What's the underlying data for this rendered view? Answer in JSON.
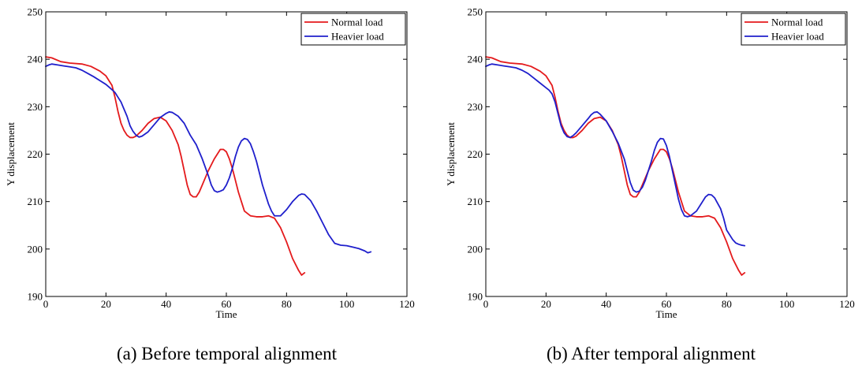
{
  "captions": [
    "(a) Before temporal alignment",
    "(b) After temporal alignment"
  ],
  "chart_data": [
    {
      "type": "line",
      "xlabel": "Time",
      "ylabel": "Y displacement",
      "xlim": [
        0,
        120
      ],
      "ylim": [
        190,
        250
      ],
      "xticks": [
        0,
        20,
        40,
        60,
        80,
        100,
        120
      ],
      "yticks": [
        190,
        200,
        210,
        220,
        230,
        240,
        250
      ],
      "grid": false,
      "legend_position": "top-right",
      "series": [
        {
          "name": "Normal load",
          "color": "#e41a1c",
          "x": [
            0,
            2,
            5,
            8,
            12,
            15,
            18,
            20,
            21,
            22,
            23,
            24,
            25,
            26,
            27,
            28,
            29,
            30,
            32,
            34,
            36,
            38,
            40,
            42,
            44,
            45,
            46,
            47,
            48,
            49,
            50,
            51,
            52,
            53,
            54,
            56,
            58,
            59,
            60,
            61,
            62,
            63,
            64,
            65,
            66,
            68,
            70,
            72,
            74,
            76,
            78,
            80,
            82,
            84,
            85,
            86
          ],
          "y": [
            240.5,
            240.3,
            239.5,
            239.2,
            239.0,
            238.5,
            237.5,
            236.5,
            235.5,
            234.5,
            232.0,
            229.0,
            226.5,
            225.0,
            224.0,
            223.5,
            223.5,
            223.8,
            225.0,
            226.5,
            227.5,
            227.8,
            227.0,
            225.0,
            222.0,
            219.5,
            216.5,
            213.5,
            211.5,
            211.0,
            211.0,
            212.0,
            213.5,
            215.0,
            216.5,
            219.0,
            221.0,
            221.0,
            220.5,
            219.0,
            217.0,
            214.5,
            212.0,
            210.0,
            208.0,
            207.0,
            206.8,
            206.8,
            207.0,
            206.5,
            204.5,
            201.5,
            198.0,
            195.5,
            194.5,
            195.0
          ]
        },
        {
          "name": "Heavier load",
          "color": "#1f1fcc",
          "x": [
            0,
            1,
            2,
            4,
            6,
            8,
            10,
            12,
            14,
            16,
            18,
            20,
            22,
            23,
            24,
            25,
            26,
            27,
            28,
            29,
            30,
            31,
            32,
            34,
            36,
            38,
            40,
            41,
            42,
            44,
            46,
            48,
            50,
            52,
            54,
            55,
            56,
            57,
            58,
            59,
            60,
            61,
            62,
            63,
            64,
            65,
            66,
            67,
            68,
            69,
            70,
            72,
            74,
            75,
            76,
            78,
            80,
            82,
            84,
            85,
            86,
            88,
            90,
            92,
            94,
            96,
            98,
            100,
            102,
            104,
            106,
            107,
            108
          ],
          "y": [
            238.5,
            238.8,
            239.0,
            238.8,
            238.6,
            238.4,
            238.2,
            237.7,
            237.0,
            236.3,
            235.5,
            234.7,
            233.6,
            233.0,
            232.0,
            231.0,
            229.5,
            228.0,
            226.0,
            224.8,
            224.0,
            223.6,
            223.8,
            224.7,
            226.2,
            227.7,
            228.6,
            228.9,
            228.8,
            228.0,
            226.5,
            224.0,
            222.0,
            219.0,
            215.5,
            213.5,
            212.3,
            212.0,
            212.2,
            212.5,
            213.5,
            215.0,
            217.0,
            219.5,
            221.5,
            222.8,
            223.3,
            223.1,
            222.2,
            220.5,
            218.5,
            213.5,
            209.5,
            208.0,
            207.0,
            207.0,
            208.3,
            210.0,
            211.3,
            211.6,
            211.5,
            210.2,
            208.0,
            205.5,
            203.0,
            201.2,
            200.8,
            200.7,
            200.4,
            200.1,
            199.6,
            199.2,
            199.4
          ]
        }
      ]
    },
    {
      "type": "line",
      "xlabel": "Time",
      "ylabel": "Y displacement",
      "xlim": [
        0,
        120
      ],
      "ylim": [
        190,
        250
      ],
      "xticks": [
        0,
        20,
        40,
        60,
        80,
        100,
        120
      ],
      "yticks": [
        190,
        200,
        210,
        220,
        230,
        240,
        250
      ],
      "grid": false,
      "legend_position": "top-right",
      "series": [
        {
          "name": "Normal load",
          "color": "#e41a1c",
          "x": [
            0,
            2,
            5,
            8,
            12,
            15,
            18,
            20,
            21,
            22,
            23,
            24,
            25,
            26,
            27,
            28,
            29,
            30,
            32,
            34,
            36,
            38,
            40,
            42,
            44,
            45,
            46,
            47,
            48,
            49,
            50,
            51,
            52,
            53,
            54,
            56,
            58,
            59,
            60,
            61,
            62,
            63,
            64,
            65,
            66,
            68,
            70,
            72,
            74,
            76,
            78,
            80,
            82,
            84,
            85,
            86
          ],
          "y": [
            240.5,
            240.3,
            239.5,
            239.2,
            239.0,
            238.5,
            237.5,
            236.5,
            235.5,
            234.5,
            232.0,
            229.0,
            226.5,
            225.0,
            224.0,
            223.5,
            223.5,
            223.8,
            225.0,
            226.5,
            227.5,
            227.8,
            227.0,
            225.0,
            222.0,
            219.5,
            216.5,
            213.5,
            211.5,
            211.0,
            211.0,
            212.0,
            213.5,
            215.0,
            216.5,
            219.0,
            221.0,
            221.0,
            220.5,
            219.0,
            217.0,
            214.5,
            212.0,
            210.0,
            208.0,
            207.0,
            206.8,
            206.8,
            207.0,
            206.5,
            204.5,
            201.5,
            198.0,
            195.5,
            194.5,
            195.0
          ]
        },
        {
          "name": "Heavier load",
          "color": "#1f1fcc",
          "x": [
            0,
            1,
            2,
            4,
            6,
            8,
            10,
            12,
            14,
            16,
            18,
            20,
            21,
            22,
            23,
            24,
            25,
            26,
            27,
            28,
            29,
            30,
            32,
            34,
            35,
            36,
            37,
            38,
            40,
            42,
            44,
            46,
            47,
            48,
            49,
            50,
            51,
            52,
            53,
            54,
            55,
            56,
            57,
            58,
            59,
            60,
            61,
            62,
            63,
            64,
            65,
            66,
            67,
            68,
            69,
            70,
            72,
            73,
            74,
            75,
            76,
            78,
            79,
            80,
            82,
            83,
            84,
            85,
            86
          ],
          "y": [
            238.5,
            238.8,
            239.0,
            238.8,
            238.6,
            238.4,
            238.2,
            237.7,
            237.0,
            236.0,
            235.0,
            234.0,
            233.5,
            232.7,
            231.0,
            228.5,
            226.0,
            224.5,
            223.7,
            223.5,
            223.9,
            224.5,
            226.0,
            227.5,
            228.3,
            228.8,
            228.9,
            228.4,
            227.0,
            224.8,
            222.3,
            219.0,
            216.5,
            214.0,
            212.4,
            212.0,
            212.2,
            213.0,
            214.5,
            216.5,
            218.5,
            220.8,
            222.5,
            223.3,
            223.2,
            221.8,
            219.5,
            216.5,
            213.5,
            210.5,
            208.3,
            207.0,
            206.8,
            207.0,
            207.5,
            208.0,
            210.0,
            211.0,
            211.5,
            211.4,
            210.8,
            208.5,
            206.5,
            204.0,
            202.0,
            201.3,
            201.0,
            200.8,
            200.7
          ]
        }
      ]
    }
  ]
}
